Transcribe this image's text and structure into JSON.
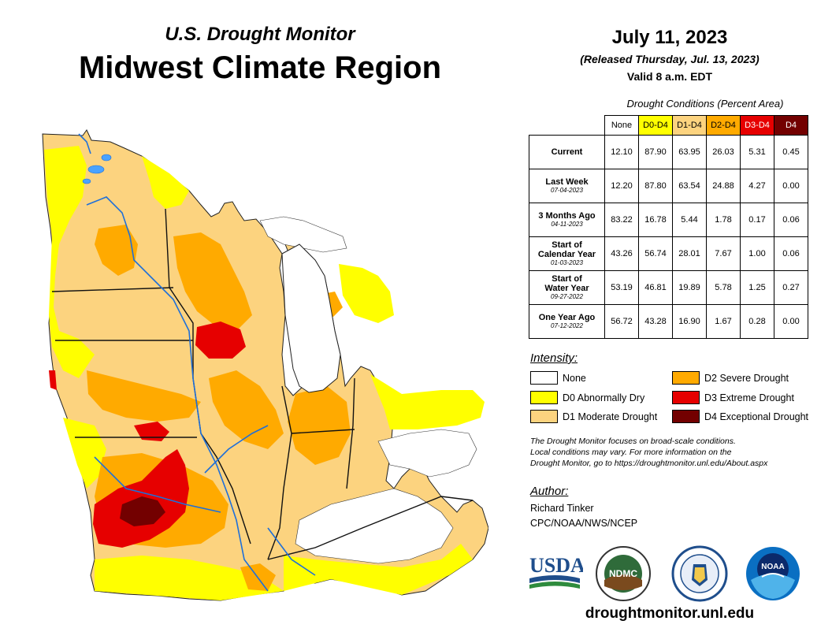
{
  "header": {
    "subtitle": "U.S. Drought Monitor",
    "title": "Midwest Climate Region",
    "date": "July 11, 2023",
    "released": "(Released Thursday, Jul. 13, 2023)",
    "valid": "Valid 8 a.m. EDT"
  },
  "table": {
    "caption": "Drought Conditions (Percent Area)",
    "columns": [
      {
        "label": "None",
        "color": "#ffffff",
        "text_color": "#000000"
      },
      {
        "label": "D0-D4",
        "color": "#ffff00",
        "text_color": "#000000"
      },
      {
        "label": "D1-D4",
        "color": "#fcd37f",
        "text_color": "#000000"
      },
      {
        "label": "D2-D4",
        "color": "#ffaa00",
        "text_color": "#000000"
      },
      {
        "label": "D3-D4",
        "color": "#e60000",
        "text_color": "#ffffff"
      },
      {
        "label": "D4",
        "color": "#730000",
        "text_color": "#ffffff"
      }
    ],
    "rows": [
      {
        "label": "Current",
        "label2": "",
        "date": "",
        "values": [
          "12.10",
          "87.90",
          "63.95",
          "26.03",
          "5.31",
          "0.45"
        ]
      },
      {
        "label": "Last Week",
        "label2": "",
        "date": "07-04-2023",
        "values": [
          "12.20",
          "87.80",
          "63.54",
          "24.88",
          "4.27",
          "0.00"
        ]
      },
      {
        "label": "3 Months Ago",
        "label2": "",
        "date": "04-11-2023",
        "values": [
          "83.22",
          "16.78",
          "5.44",
          "1.78",
          "0.17",
          "0.06"
        ]
      },
      {
        "label": "Start of",
        "label2": "Calendar Year",
        "date": "01-03-2023",
        "values": [
          "43.26",
          "56.74",
          "28.01",
          "7.67",
          "1.00",
          "0.06"
        ]
      },
      {
        "label": "Start of",
        "label2": "Water Year",
        "date": "09-27-2022",
        "values": [
          "53.19",
          "46.81",
          "19.89",
          "5.78",
          "1.25",
          "0.27"
        ]
      },
      {
        "label": "One Year Ago",
        "label2": "",
        "date": "07-12-2022",
        "values": [
          "56.72",
          "43.28",
          "16.90",
          "1.67",
          "0.28",
          "0.00"
        ]
      }
    ]
  },
  "legend": {
    "title": "Intensity:",
    "items": [
      {
        "label": "None",
        "color": "#ffffff"
      },
      {
        "label": "D0 Abnormally Dry",
        "color": "#ffff00"
      },
      {
        "label": "D1 Moderate Drought",
        "color": "#fcd37f"
      },
      {
        "label": "D2 Severe Drought",
        "color": "#ffaa00"
      },
      {
        "label": "D3 Extreme Drought",
        "color": "#e60000"
      },
      {
        "label": "D4 Exceptional Drought",
        "color": "#730000"
      }
    ]
  },
  "note": {
    "line1": "The Drought Monitor focuses on broad-scale conditions.",
    "line2": "Local conditions may vary. For more information on the",
    "line3": "Drought Monitor, go to https://droughtmonitor.unl.edu/About.aspx"
  },
  "author": {
    "title": "Author:",
    "name": "Richard Tinker",
    "org": "CPC/NOAA/NWS/NCEP"
  },
  "logos": {
    "usda": "USDA",
    "ndmc": "NDMC",
    "noaa": "NOAA"
  },
  "website": "droughtmonitor.unl.edu"
}
